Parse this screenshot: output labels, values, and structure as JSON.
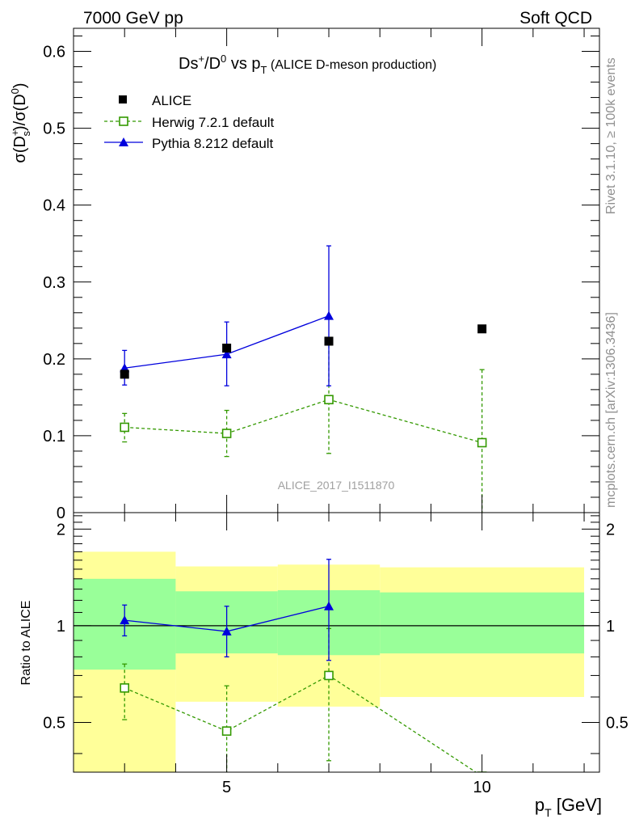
{
  "header": {
    "left": "7000 GeV pp",
    "right": "Soft QCD"
  },
  "side_labels": {
    "rivet": "Rivet 3.1.10, ≥ 100k events",
    "mcplots": "mcplots.cern.ch [arXiv:1306.3436]"
  },
  "watermark": "ALICE_2017_I1511870",
  "colors": {
    "alice": "#000000",
    "herwig": "#339900",
    "pythia": "#0000dd",
    "band_inner": "#99ff99",
    "band_outer": "#ffff99"
  },
  "chart_data": [
    {
      "type": "scatter",
      "title": "Ds+/D0 vs pT (ALICE D-meson production)",
      "xlabel": "pT [GeV]",
      "ylabel": "σ(Ds+)/σ(D0)",
      "xlim": [
        2,
        12.3
      ],
      "ylim": [
        0,
        0.63
      ],
      "yticks": [
        0,
        0.1,
        0.2,
        0.3,
        0.4,
        0.5,
        0.6
      ],
      "ytick_labels": [
        "0",
        "0.1",
        "0.2",
        "0.3",
        "0.4",
        "0.5",
        "0.6"
      ],
      "legend_position": "top-left",
      "series": [
        {
          "name": "ALICE",
          "style": "marker",
          "x": [
            3,
            5,
            7,
            10
          ],
          "y": [
            0.18,
            0.214,
            0.223,
            0.239
          ],
          "err_lo": [
            0,
            0,
            0,
            0
          ],
          "err_hi": [
            0,
            0,
            0,
            0
          ]
        },
        {
          "name": "Herwig 7.2.1 default",
          "style": "dashed-open-square",
          "x": [
            3,
            5,
            7,
            10
          ],
          "y": [
            0.111,
            0.103,
            0.147,
            0.091
          ],
          "err_lo": [
            0.019,
            0.03,
            0.07,
            0.091
          ],
          "err_hi": [
            0.018,
            0.03,
            0.071,
            0.095
          ]
        },
        {
          "name": "Pythia 8.212 default",
          "style": "solid-triangle",
          "x": [
            3,
            5,
            7
          ],
          "y": [
            0.188,
            0.206,
            0.256
          ],
          "err_lo": [
            0.022,
            0.041,
            0.091
          ],
          "err_hi": [
            0.023,
            0.042,
            0.091
          ]
        }
      ]
    },
    {
      "type": "scatter",
      "title": "",
      "xlabel": "pT [GeV]",
      "ylabel": "Ratio to ALICE",
      "xlim": [
        2,
        12.3
      ],
      "ylim": [
        0.35,
        2.25
      ],
      "yticks": [
        0.5,
        1,
        2
      ],
      "ytick_labels": [
        "0.5",
        "1",
        "2"
      ],
      "xticks": [
        5,
        10
      ],
      "xtick_labels": [
        "5",
        "10"
      ],
      "bands": [
        {
          "x0": 2,
          "x1": 4,
          "inner": [
            0.73,
            1.4
          ],
          "outer": [
            0.35,
            1.7
          ]
        },
        {
          "x0": 4,
          "x1": 6,
          "inner": [
            0.82,
            1.28
          ],
          "outer": [
            0.58,
            1.53
          ]
        },
        {
          "x0": 6,
          "x1": 8,
          "inner": [
            0.81,
            1.29
          ],
          "outer": [
            0.56,
            1.55
          ]
        },
        {
          "x0": 8,
          "x1": 12,
          "inner": [
            0.82,
            1.27
          ],
          "outer": [
            0.6,
            1.52
          ]
        }
      ],
      "series": [
        {
          "name": "Herwig 7.2.1 default",
          "style": "dashed-open-square",
          "x": [
            3,
            5,
            7,
            10
          ],
          "y": [
            0.64,
            0.47,
            0.7,
            0.34
          ],
          "err_lo": [
            0.13,
            0.13,
            0.32,
            0
          ],
          "err_hi": [
            0.12,
            0.18,
            0.28,
            0
          ]
        },
        {
          "name": "Pythia 8.212 default",
          "style": "solid-triangle",
          "x": [
            3,
            5,
            7
          ],
          "y": [
            1.04,
            0.96,
            1.15
          ],
          "err_lo": [
            0.11,
            0.16,
            0.37
          ],
          "err_hi": [
            0.12,
            0.19,
            0.46
          ]
        }
      ]
    }
  ]
}
